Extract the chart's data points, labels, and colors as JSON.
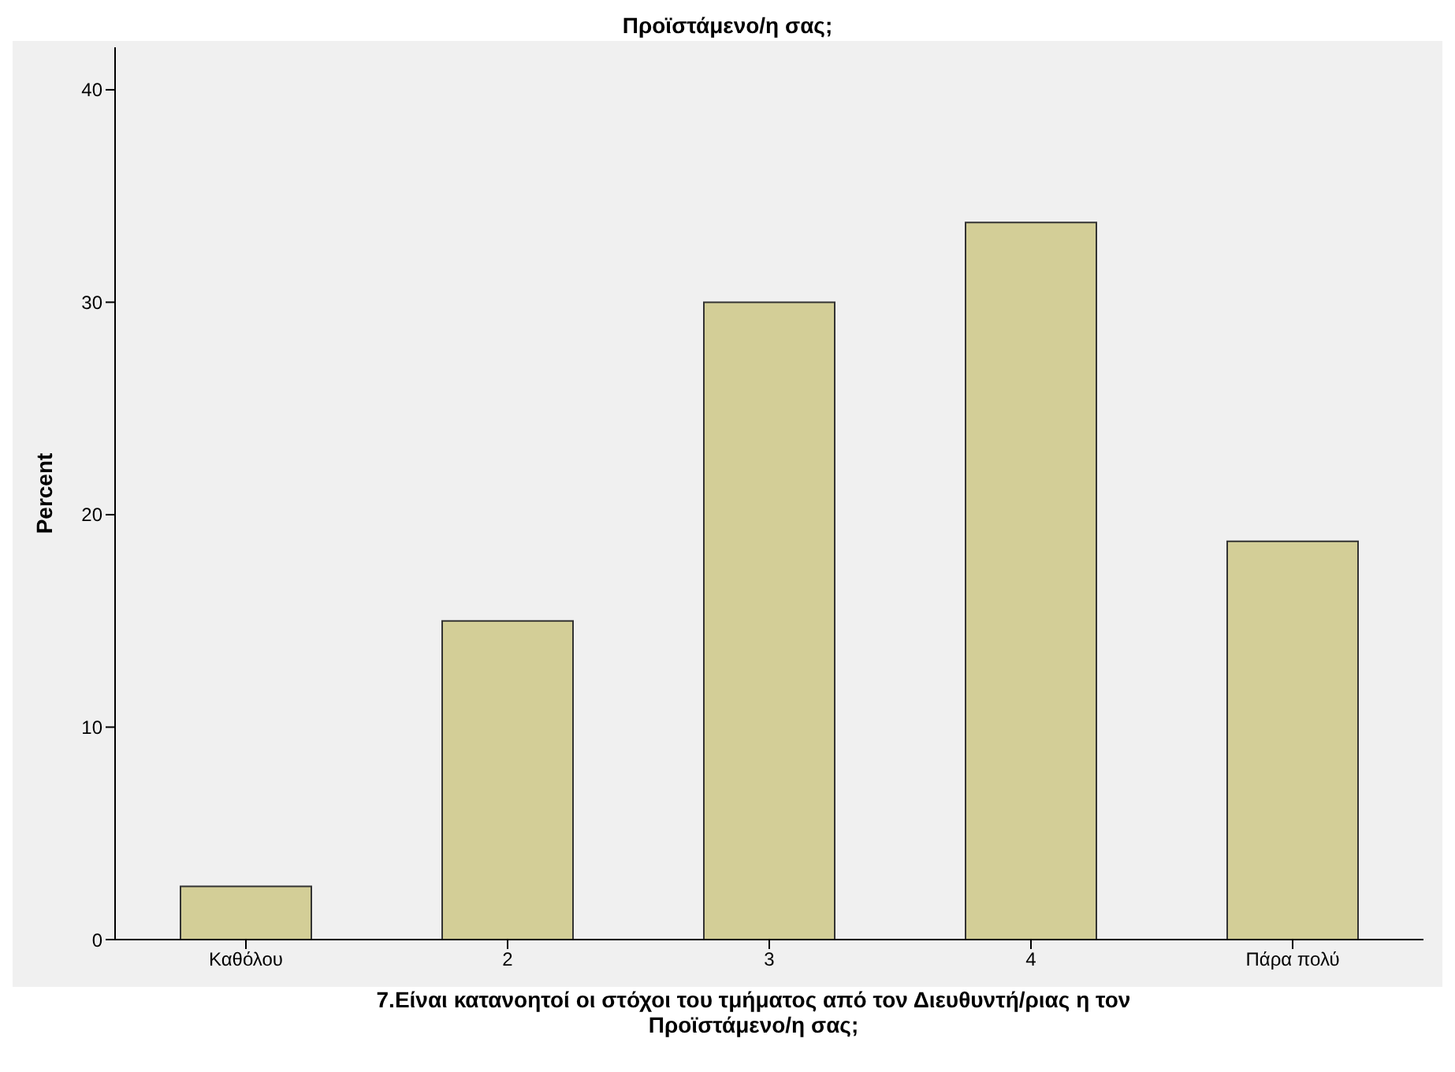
{
  "chart_data": {
    "type": "bar",
    "title": "Προϊστάμενο/η σας;",
    "xlabel": "7.Είναι κατανοητοί οι στόχοι του τμήματος από τον Διευθυντή/ριας η τον Προϊστάμενο/η σας;",
    "ylabel": "Percent",
    "categories": [
      "Καθόλου",
      "2",
      "3",
      "4",
      "Πάρα πολύ"
    ],
    "values": [
      2.5,
      15,
      30,
      33.75,
      18.75
    ],
    "color": "#d3ce97",
    "ylim": [
      0,
      42
    ],
    "yticks": [
      0,
      10,
      20,
      30,
      40
    ]
  }
}
